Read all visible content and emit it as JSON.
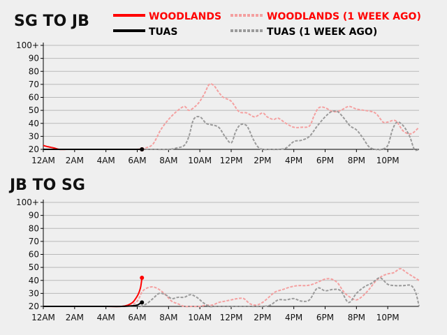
{
  "colors": {
    "woodlands": "#ff0000",
    "tuas": "#000000",
    "woodlands_prev": "#f4a0a0",
    "tuas_prev": "#9a9a9a",
    "background": "#efefef"
  },
  "legend": {
    "woodlands": "WOODLANDS",
    "woodlands_prev": "WOODLANDS (1 WEEK AGO)",
    "tuas": "TUAS",
    "tuas_prev": "TUAS (1 WEEK AGO)"
  },
  "chart_data": [
    {
      "type": "line",
      "title": "SG TO JB",
      "xlabel": "",
      "ylabel": "",
      "xlim": [
        0,
        24
      ],
      "ylim": [
        20,
        100
      ],
      "y_ticks": [
        "20",
        "30",
        "40",
        "50",
        "60",
        "70",
        "80",
        "90",
        "100+"
      ],
      "x_ticks": [
        "12AM",
        "2AM",
        "4AM",
        "6AM",
        "8AM",
        "10AM",
        "12PM",
        "2PM",
        "4PM",
        "6PM",
        "8PM",
        "10PM"
      ],
      "grid": true,
      "legend_position": "top-right",
      "series": [
        {
          "key": "woodlands_prev",
          "name": "WOODLANDS (1 WEEK AGO)",
          "dashed": true,
          "x": [
            6.0,
            6.5,
            7.0,
            7.5,
            8.0,
            8.5,
            9.0,
            9.3,
            9.7,
            10.0,
            10.3,
            10.6,
            10.9,
            11.2,
            11.5,
            12.0,
            12.5,
            13.0,
            13.5,
            14.0,
            14.3,
            14.7,
            15.0,
            15.5,
            16.0,
            16.5,
            17.0,
            17.3,
            17.6,
            18.0,
            18.5,
            19.0,
            19.5,
            20.0,
            20.5,
            21.0,
            21.3,
            21.7,
            22.0,
            22.5,
            23.0,
            23.5,
            24.0
          ],
          "y": [
            20,
            21,
            24,
            35,
            43,
            49,
            53,
            50,
            53,
            57,
            63,
            70,
            69,
            64,
            60,
            57,
            49,
            48,
            45,
            48,
            45,
            43,
            44,
            40,
            37,
            37,
            38,
            46,
            52,
            52,
            49,
            50,
            53,
            51,
            50,
            49,
            47,
            41,
            41,
            42,
            34,
            32,
            37
          ]
        },
        {
          "key": "tuas_prev",
          "name": "TUAS (1 WEEK AGO)",
          "dashed": true,
          "x": [
            6.0,
            7.0,
            8.0,
            8.5,
            9.0,
            9.3,
            9.6,
            10.0,
            10.4,
            10.7,
            11.2,
            11.6,
            12.0,
            12.3,
            12.6,
            13.0,
            13.4,
            13.7,
            14.0,
            14.5,
            15.0,
            15.5,
            16.0,
            16.5,
            17.0,
            17.5,
            18.0,
            18.4,
            18.8,
            19.2,
            19.6,
            20.0,
            20.4,
            20.8,
            21.2,
            21.6,
            22.0,
            22.3,
            22.6,
            23.0,
            23.4,
            23.7,
            24.0
          ],
          "y": [
            20,
            20,
            20,
            21,
            23,
            30,
            43,
            45,
            40,
            39,
            37,
            30,
            25,
            34,
            39,
            38,
            28,
            22,
            20,
            20,
            20,
            21,
            26,
            27,
            30,
            38,
            45,
            49,
            49,
            44,
            38,
            35,
            29,
            22,
            20,
            20,
            23,
            35,
            41,
            38,
            30,
            20,
            20
          ]
        },
        {
          "key": "woodlands",
          "name": "WOODLANDS",
          "dashed": false,
          "x": [
            0,
            0.3,
            0.7,
            1.0,
            1.5,
            2.0,
            3.0,
            4.0,
            5.0,
            6.0,
            6.3
          ],
          "y": [
            23,
            22,
            21,
            20,
            20,
            20,
            20,
            20,
            20,
            20,
            20
          ]
        },
        {
          "key": "tuas",
          "name": "TUAS",
          "dashed": false,
          "x": [
            0,
            1,
            2,
            3,
            4,
            5,
            6,
            6.3
          ],
          "y": [
            20,
            20,
            20,
            20,
            20,
            20,
            20,
            20
          ]
        }
      ]
    },
    {
      "type": "line",
      "title": "JB TO SG",
      "xlabel": "",
      "ylabel": "",
      "xlim": [
        0,
        24
      ],
      "ylim": [
        20,
        100
      ],
      "y_ticks": [
        "20",
        "30",
        "40",
        "50",
        "60",
        "70",
        "80",
        "90",
        "100+"
      ],
      "x_ticks": [
        "12AM",
        "2AM",
        "4AM",
        "6AM",
        "8AM",
        "10AM",
        "12PM",
        "2PM",
        "4PM",
        "6PM",
        "8PM",
        "10PM"
      ],
      "grid": true,
      "legend_position": "none",
      "series": [
        {
          "key": "woodlands_prev",
          "name": "WOODLANDS (1 WEEK AGO)",
          "dashed": true,
          "x": [
            5.5,
            6.0,
            6.3,
            6.6,
            7.0,
            7.4,
            7.8,
            8.2,
            8.6,
            9.0,
            9.5,
            10.0,
            10.4,
            10.8,
            11.2,
            11.6,
            12.0,
            12.4,
            12.8,
            13.2,
            13.6,
            14.0,
            14.4,
            14.8,
            15.3,
            15.8,
            16.3,
            16.8,
            17.2,
            17.6,
            18.0,
            18.4,
            18.8,
            19.2,
            19.6,
            20.0,
            20.4,
            20.8,
            21.2,
            21.6,
            22.0,
            22.4,
            22.8,
            23.2,
            23.6,
            24.0
          ],
          "y": [
            20,
            24,
            31,
            34,
            35,
            33,
            29,
            24,
            22,
            20,
            20,
            20,
            21,
            21,
            23,
            24,
            25,
            26,
            26,
            22,
            21,
            23,
            27,
            31,
            33,
            35,
            36,
            36,
            37,
            39,
            41,
            41,
            38,
            31,
            27,
            25,
            28,
            33,
            39,
            43,
            45,
            46,
            49,
            46,
            43,
            40
          ]
        },
        {
          "key": "tuas_prev",
          "name": "TUAS (1 WEEK AGO)",
          "dashed": true,
          "x": [
            6.2,
            6.6,
            7.0,
            7.4,
            7.8,
            8.2,
            8.6,
            9.0,
            9.4,
            9.8,
            10.2,
            10.6,
            11.0,
            12.0,
            13.0,
            14.0,
            14.5,
            15.0,
            15.5,
            16.0,
            16.5,
            17.0,
            17.5,
            18.0,
            18.5,
            19.0,
            19.5,
            20.0,
            20.5,
            21.0,
            21.5,
            22.0,
            22.5,
            23.0,
            23.5,
            23.8,
            24.0
          ],
          "y": [
            20,
            22,
            26,
            30,
            29,
            26,
            27,
            27,
            29,
            27,
            23,
            20,
            20,
            20,
            20,
            20,
            21,
            25,
            25,
            26,
            24,
            25,
            34,
            32,
            33,
            32,
            23,
            30,
            35,
            38,
            42,
            37,
            36,
            36,
            36,
            30,
            20
          ]
        },
        {
          "key": "woodlands",
          "name": "WOODLANDS",
          "dashed": false,
          "x": [
            0,
            1,
            2,
            3,
            4,
            5,
            5.4,
            5.7,
            5.9,
            6.05,
            6.15,
            6.22,
            6.27,
            6.3
          ],
          "y": [
            20,
            20,
            20,
            20,
            20,
            20,
            21,
            23,
            26,
            29,
            32,
            35,
            39,
            42
          ]
        },
        {
          "key": "tuas",
          "name": "TUAS",
          "dashed": false,
          "x": [
            0,
            1,
            2,
            3,
            4,
            5,
            5.7,
            6.0,
            6.15,
            6.25,
            6.3
          ],
          "y": [
            20,
            20,
            20,
            20,
            20,
            20,
            20.5,
            21,
            22,
            22.5,
            23
          ]
        }
      ]
    }
  ]
}
